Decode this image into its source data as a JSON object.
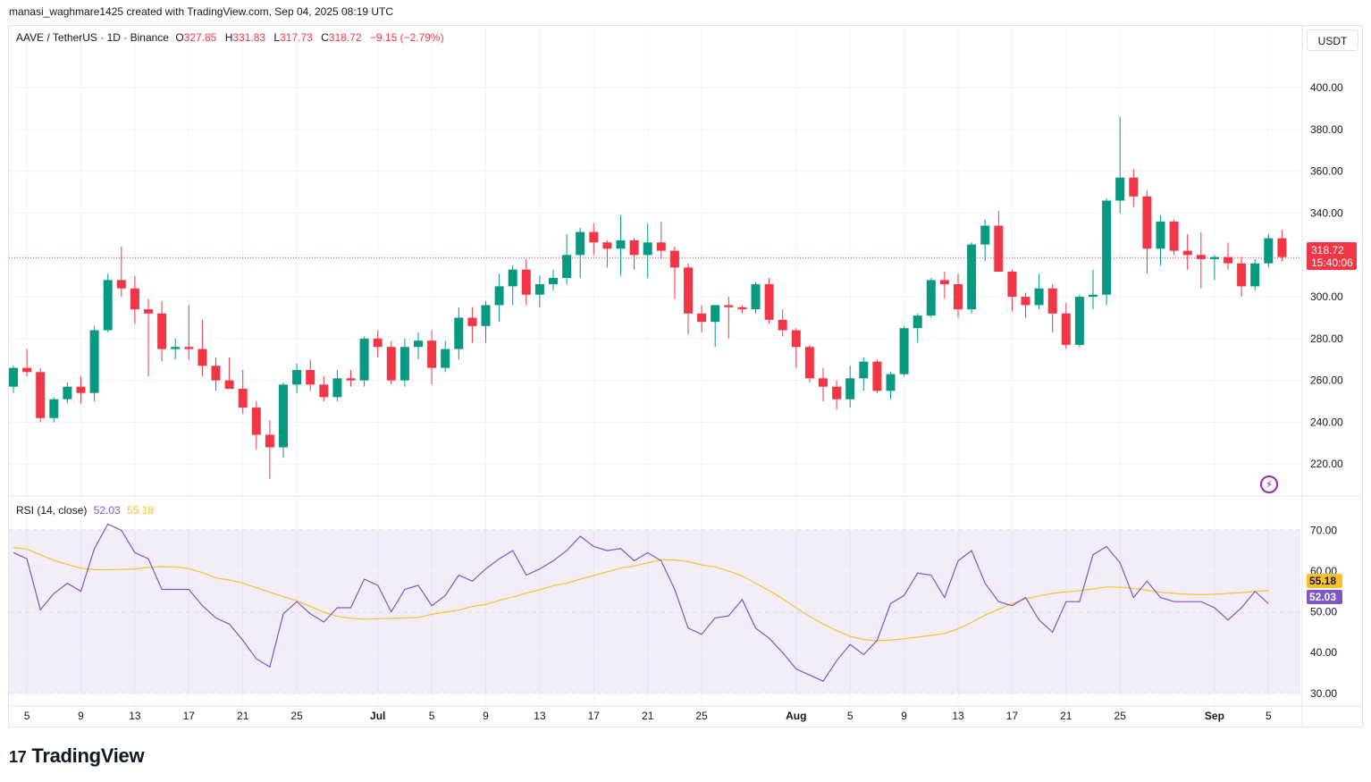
{
  "header": {
    "text": "manasi_waghmare1425 created with TradingView.com, Sep 04, 2025 08:19 UTC"
  },
  "symbol": {
    "title": "AAVE / TetherUS · 1D · Binance",
    "o_label": "O",
    "o": "327.85",
    "h_label": "H",
    "h": "331.83",
    "l_label": "L",
    "l": "317.73",
    "c_label": "C",
    "c": "318.72",
    "change": "−9.15 (−2.79%)"
  },
  "currency_button": "USDT",
  "last_price": {
    "value": "318.72",
    "countdown": "15:40:06"
  },
  "rsi_legend": {
    "label": "RSI (14, close)",
    "rsi": "52.03",
    "sma": "55.18"
  },
  "rsi_axis_tags": {
    "rsi": "52.03",
    "sma": "55.18"
  },
  "brand": {
    "logo": "17",
    "name": "TradingView"
  },
  "colors": {
    "up": "#089981",
    "down": "#f23645",
    "rsi": "#7e57c2",
    "sma": "#fbc02d",
    "band": "#7e57c2",
    "price_line": "#f23645"
  },
  "icons": {
    "flash": "flash-icon",
    "logo": "tradingview-logo-icon"
  },
  "chart_data": [
    {
      "type": "candlestick",
      "title": "AAVE / TetherUS · 1D · Binance",
      "price_ticks": [
        "220.00",
        "240.00",
        "260.00",
        "280.00",
        "300.00",
        "320.00",
        "340.00",
        "360.00",
        "380.00",
        "400.00"
      ],
      "price_ylim": [
        206,
        418
      ],
      "time_ticks": [
        {
          "label": "5",
          "i": 1
        },
        {
          "label": "9",
          "i": 5
        },
        {
          "label": "13",
          "i": 9
        },
        {
          "label": "17",
          "i": 13
        },
        {
          "label": "21",
          "i": 17
        },
        {
          "label": "25",
          "i": 21
        },
        {
          "label": "Jul",
          "i": 27
        },
        {
          "label": "5",
          "i": 31
        },
        {
          "label": "9",
          "i": 35
        },
        {
          "label": "13",
          "i": 39
        },
        {
          "label": "17",
          "i": 43
        },
        {
          "label": "21",
          "i": 47
        },
        {
          "label": "25",
          "i": 51
        },
        {
          "label": "Aug",
          "i": 58
        },
        {
          "label": "5",
          "i": 62
        },
        {
          "label": "9",
          "i": 66
        },
        {
          "label": "13",
          "i": 70
        },
        {
          "label": "17",
          "i": 74
        },
        {
          "label": "21",
          "i": 78
        },
        {
          "label": "25",
          "i": 82
        },
        {
          "label": "Sep",
          "i": 89
        },
        {
          "label": "5",
          "i": 93
        }
      ],
      "candles": [
        [
          257,
          267,
          254,
          266
        ],
        [
          266,
          275,
          262,
          264
        ],
        [
          264,
          266,
          240,
          242
        ],
        [
          242,
          252,
          240,
          251
        ],
        [
          251,
          259,
          249,
          257
        ],
        [
          257,
          262,
          249,
          254
        ],
        [
          254,
          286,
          250,
          284
        ],
        [
          284,
          311,
          283,
          308
        ],
        [
          308,
          324,
          300,
          304
        ],
        [
          304,
          310,
          287,
          294
        ],
        [
          294,
          299,
          262,
          292
        ],
        [
          292,
          298,
          269,
          275
        ],
        [
          275,
          280,
          270,
          276
        ],
        [
          276,
          296,
          270,
          275
        ],
        [
          275,
          289,
          262,
          267
        ],
        [
          267,
          271,
          255,
          260
        ],
        [
          260,
          271,
          256,
          256
        ],
        [
          256,
          265,
          244,
          247
        ],
        [
          247,
          250,
          227,
          234
        ],
        [
          234,
          241,
          213,
          228
        ],
        [
          228,
          259,
          223,
          258
        ],
        [
          258,
          268,
          254,
          265
        ],
        [
          265,
          270,
          255,
          258
        ],
        [
          258,
          262,
          250,
          252
        ],
        [
          252,
          265,
          250,
          261
        ],
        [
          261,
          265,
          257,
          260
        ],
        [
          260,
          281,
          257,
          280
        ],
        [
          280,
          284,
          271,
          276
        ],
        [
          276,
          279,
          258,
          260
        ],
        [
          260,
          280,
          257,
          276
        ],
        [
          276,
          283,
          270,
          279
        ],
        [
          279,
          284,
          258,
          266
        ],
        [
          266,
          279,
          264,
          275
        ],
        [
          275,
          295,
          270,
          290
        ],
        [
          290,
          295,
          278,
          286
        ],
        [
          286,
          298,
          278,
          296
        ],
        [
          296,
          311,
          288,
          305
        ],
        [
          305,
          315,
          296,
          313
        ],
        [
          313,
          318,
          296,
          301
        ],
        [
          301,
          310,
          295,
          306
        ],
        [
          306,
          313,
          303,
          309
        ],
        [
          309,
          330,
          306,
          320
        ],
        [
          320,
          333,
          309,
          331
        ],
        [
          331,
          335,
          320,
          326
        ],
        [
          326,
          327,
          314,
          323
        ],
        [
          323,
          339,
          310,
          327
        ],
        [
          327,
          328,
          313,
          320
        ],
        [
          320,
          335,
          309,
          326
        ],
        [
          326,
          336,
          318,
          322
        ],
        [
          322,
          324,
          299,
          314
        ],
        [
          314,
          316,
          282,
          292
        ],
        [
          292,
          296,
          283,
          288
        ],
        [
          288,
          296,
          276,
          296
        ],
        [
          296,
          300,
          280,
          295
        ],
        [
          295,
          296,
          292,
          294
        ],
        [
          294,
          307,
          292,
          306
        ],
        [
          306,
          309,
          287,
          289
        ],
        [
          289,
          294,
          281,
          284
        ],
        [
          284,
          285,
          266,
          276
        ],
        [
          276,
          277,
          259,
          261
        ],
        [
          261,
          266,
          250,
          257
        ],
        [
          257,
          260,
          246,
          251
        ],
        [
          251,
          267,
          247,
          261
        ],
        [
          261,
          271,
          255,
          269
        ],
        [
          269,
          270,
          254,
          255
        ],
        [
          255,
          264,
          251,
          263
        ],
        [
          263,
          286,
          262,
          285
        ],
        [
          285,
          292,
          278,
          291
        ],
        [
          291,
          309,
          290,
          308
        ],
        [
          308,
          312,
          299,
          306
        ],
        [
          306,
          311,
          290,
          294
        ],
        [
          294,
          326,
          292,
          325
        ],
        [
          325,
          337,
          317,
          334
        ],
        [
          334,
          341,
          312,
          312
        ],
        [
          312,
          313,
          293,
          300
        ],
        [
          300,
          302,
          290,
          296
        ],
        [
          296,
          311,
          294,
          304
        ],
        [
          304,
          306,
          283,
          292
        ],
        [
          292,
          297,
          275,
          277
        ],
        [
          277,
          301,
          276,
          300
        ],
        [
          300,
          313,
          294,
          301
        ],
        [
          301,
          347,
          296,
          346
        ],
        [
          346,
          386,
          340,
          357
        ],
        [
          357,
          361,
          343,
          348
        ],
        [
          348,
          351,
          311,
          323
        ],
        [
          323,
          339,
          315,
          336
        ],
        [
          336,
          337,
          320,
          322
        ],
        [
          322,
          330,
          313,
          320
        ],
        [
          320,
          331,
          304,
          318
        ],
        [
          318,
          320,
          308,
          319
        ],
        [
          319,
          326,
          313,
          316
        ],
        [
          316,
          319,
          300,
          305
        ],
        [
          305,
          318,
          303,
          316
        ],
        [
          316,
          330,
          314,
          328
        ],
        [
          328,
          332,
          317,
          319
        ]
      ]
    },
    {
      "type": "line",
      "title": "RSI (14, close)",
      "y_ticks": [
        "30.00",
        "40.00",
        "50.00",
        "60.00",
        "70.00"
      ],
      "ylim": [
        28,
        74
      ],
      "band": [
        30,
        70
      ],
      "midline": 50,
      "series": [
        {
          "name": "RSI",
          "values": [
            64.5,
            63.0,
            50.5,
            54.5,
            57.0,
            55.0,
            65.5,
            71.5,
            70.0,
            64.5,
            63.0,
            55.5,
            55.5,
            55.5,
            51.5,
            48.5,
            47.0,
            43.0,
            38.5,
            36.5,
            49.5,
            52.5,
            49.5,
            47.5,
            51.0,
            51.0,
            58.0,
            56.5,
            50.0,
            55.5,
            56.5,
            51.5,
            54.0,
            59.0,
            57.5,
            60.5,
            63.0,
            65.0,
            59.0,
            60.5,
            62.5,
            65.0,
            68.5,
            66.0,
            65.0,
            65.5,
            62.5,
            64.5,
            62.5,
            55.5,
            46.0,
            44.5,
            48.5,
            49.0,
            53.0,
            46.0,
            43.5,
            40.0,
            36.0,
            34.5,
            33.0,
            38.0,
            42.0,
            39.5,
            43.0,
            52.0,
            54.0,
            59.5,
            59.0,
            53.5,
            62.5,
            65.0,
            57.0,
            52.5,
            51.5,
            53.5,
            48.0,
            45.0,
            52.5,
            52.5,
            64.0,
            66.0,
            62.0,
            53.5,
            57.5,
            53.5,
            52.5,
            52.5,
            52.5,
            51.0,
            48.0,
            51.0,
            55.0,
            52.0
          ]
        },
        {
          "name": "SMA",
          "values": [
            65.7,
            65.4,
            64.0,
            62.6,
            61.6,
            60.7,
            60.3,
            60.3,
            60.4,
            60.5,
            60.9,
            61.1,
            61.0,
            60.6,
            59.6,
            58.3,
            57.8,
            57.0,
            55.9,
            54.8,
            53.7,
            52.7,
            51.3,
            49.9,
            48.9,
            48.4,
            48.2,
            48.3,
            48.4,
            48.5,
            48.6,
            49.4,
            49.9,
            50.4,
            51.3,
            51.8,
            52.8,
            53.6,
            54.6,
            55.4,
            56.4,
            57.0,
            58.0,
            58.9,
            59.8,
            60.7,
            61.2,
            62.0,
            62.8,
            62.7,
            62.3,
            61.5,
            61.0,
            60.0,
            58.8,
            57.0,
            55.2,
            53.2,
            51.0,
            48.9,
            47.0,
            45.4,
            44.0,
            43.2,
            42.9,
            43.1,
            43.4,
            43.8,
            44.2,
            44.7,
            45.8,
            47.4,
            49.2,
            50.6,
            52.0,
            53.2,
            53.9,
            54.5,
            54.9,
            55.2,
            55.6,
            56.1,
            56.0,
            55.7,
            55.3,
            54.8,
            54.5,
            54.3,
            54.2,
            54.3,
            54.5,
            54.7,
            55.0,
            55.18
          ]
        }
      ]
    }
  ]
}
